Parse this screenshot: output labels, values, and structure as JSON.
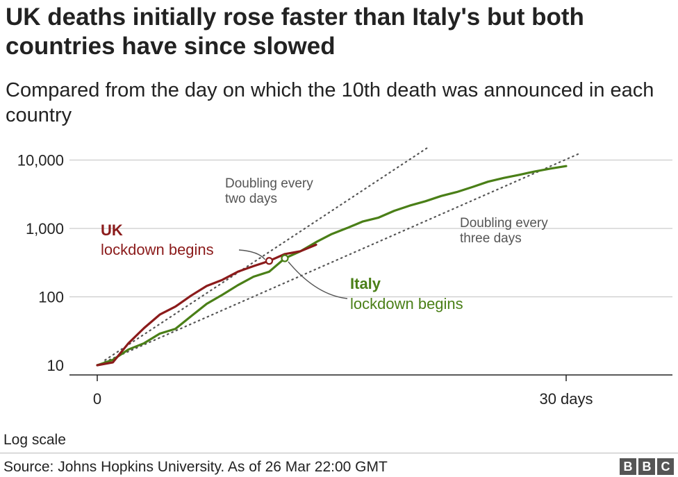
{
  "title": "UK deaths initially rose faster than Italy's but both countries have since slowed",
  "subtitle": "Compared from the day on which the 10th death was announced in each country",
  "footer": {
    "scale_note": "Log scale",
    "source": "Source: Johns Hopkins University. As of 26 Mar  22:00 GMT",
    "logo_letters": [
      "B",
      "B",
      "C"
    ]
  },
  "chart_data": {
    "type": "line",
    "y_scale": "log",
    "ylim": [
      10,
      10000
    ],
    "xlim": [
      0,
      30
    ],
    "grid": true,
    "y_ticks": [
      {
        "value": 10,
        "label": "10"
      },
      {
        "value": 100,
        "label": "100"
      },
      {
        "value": 1000,
        "label": "1,000"
      },
      {
        "value": 10000,
        "label": "10,000"
      }
    ],
    "x_ticks": [
      {
        "value": 0,
        "label": "0"
      },
      {
        "value": 30,
        "label": "30 days"
      }
    ],
    "series": [
      {
        "name": "UK",
        "color": "#8b1b1b",
        "x": [
          0,
          1,
          2,
          3,
          4,
          5,
          6,
          7,
          8,
          9,
          10,
          11,
          12,
          13,
          14
        ],
        "y": [
          10,
          11,
          21,
          35,
          55,
          72,
          104,
          144,
          177,
          233,
          281,
          335,
          422,
          465,
          578
        ]
      },
      {
        "name": "Italy",
        "color": "#4a7f17",
        "x": [
          0,
          1,
          2,
          3,
          4,
          5,
          6,
          7,
          8,
          9,
          10,
          11,
          12,
          13,
          14,
          15,
          16,
          17,
          18,
          19,
          20,
          21,
          22,
          23,
          24,
          25,
          26,
          27,
          28,
          29,
          30
        ],
        "y": [
          10,
          12,
          17,
          21,
          29,
          34,
          52,
          79,
          107,
          148,
          197,
          233,
          366,
          463,
          631,
          827,
          1016,
          1266,
          1441,
          1809,
          2158,
          2503,
          2978,
          3405,
          4032,
          4825,
          5476,
          6077,
          6820,
          7503,
          8165
        ]
      }
    ],
    "reference_lines": [
      {
        "label_lines": [
          "Doubling every",
          "two days"
        ],
        "color": "#555555",
        "doubling_days": 2
      },
      {
        "label_lines": [
          "Doubling every",
          "three days"
        ],
        "color": "#555555",
        "doubling_days": 3
      }
    ],
    "annotations": [
      {
        "series": "UK",
        "heading": "UK",
        "text": "lockdown begins",
        "color": "#8b1b1b",
        "x": 11,
        "y": 335
      },
      {
        "series": "Italy",
        "heading": "Italy",
        "text": "lockdown begins",
        "color": "#4a7f17",
        "x": 12,
        "y": 366
      }
    ]
  }
}
